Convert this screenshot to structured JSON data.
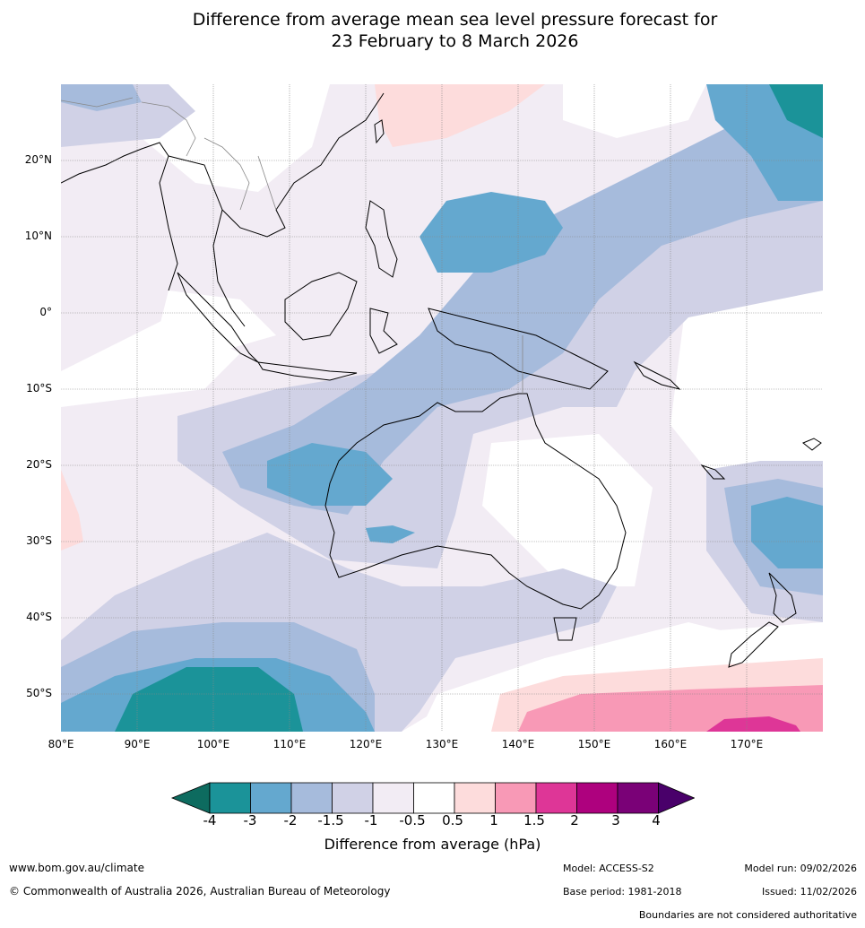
{
  "title": {
    "line1": "Difference from average mean sea level pressure forecast for",
    "line2": "23 February to 8 March 2026"
  },
  "map": {
    "lat_labels": [
      "20°N",
      "10°N",
      "0°",
      "10°S",
      "20°S",
      "30°S",
      "40°S",
      "50°S"
    ],
    "lon_labels": [
      "80°E",
      "90°E",
      "100°E",
      "110°E",
      "120°E",
      "130°E",
      "140°E",
      "150°E",
      "160°E",
      "170°E"
    ]
  },
  "legend": {
    "title": "Difference from average (hPa)",
    "ticks": [
      "-4",
      "-3",
      "-2",
      "-1.5",
      "-1",
      "-0.5",
      "0.5",
      "1",
      "1.5",
      "2",
      "3",
      "4"
    ],
    "colors": [
      "#0d6b5f",
      "#1b9399",
      "#64a8cf",
      "#a6bbdc",
      "#d0d1e6",
      "#f2ecf4",
      "#ffffff",
      "#fddcdc",
      "#f899b6",
      "#de3697",
      "#ae017e",
      "#7a0177",
      "#49006a"
    ]
  },
  "footer": {
    "website": "www.bom.gov.au/climate",
    "copyright": "© Commonwealth of Australia 2026, Australian Bureau of Meteorology",
    "model": "Model: ACCESS-S2",
    "model_run": "Model run: 09/02/2026",
    "base_period": "Base period: 1981-2018",
    "issued": "Issued: 11/02/2026",
    "disclaimer": "Boundaries are not considered authoritative"
  }
}
